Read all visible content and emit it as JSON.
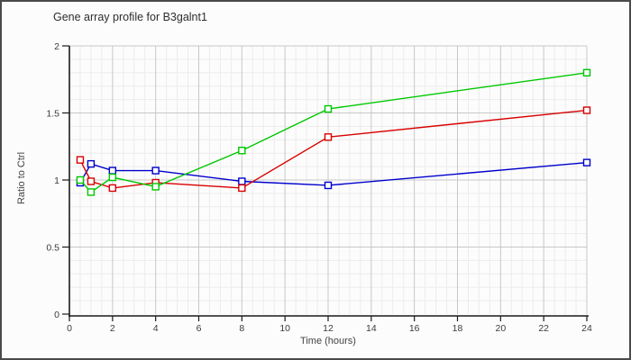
{
  "window": {
    "background": "#fcfcfc",
    "border_color": "#4a4a4a"
  },
  "chart_data": {
    "type": "line",
    "title": "Gene array profile for B3galnt1",
    "xlabel": "Time (hours)",
    "ylabel": "Ratio to Ctrl",
    "x": [
      0.5,
      1,
      2,
      4,
      8,
      12,
      24
    ],
    "series": [
      {
        "name": "blue",
        "color": "#0000cd",
        "values": [
          0.98,
          1.12,
          1.07,
          1.07,
          0.99,
          0.96,
          1.13
        ]
      },
      {
        "name": "red",
        "color": "#d80000",
        "values": [
          1.15,
          0.99,
          0.94,
          0.98,
          0.94,
          1.32,
          1.52
        ]
      },
      {
        "name": "green",
        "color": "#00c800",
        "values": [
          1.0,
          0.91,
          1.02,
          0.95,
          1.22,
          1.53,
          1.8
        ]
      }
    ],
    "xlim": [
      0,
      24
    ],
    "ylim": [
      0,
      2
    ],
    "x_ticks": [
      0,
      2,
      4,
      6,
      8,
      10,
      12,
      14,
      16,
      18,
      20,
      22,
      24
    ],
    "y_ticks": [
      0,
      0.5,
      1,
      1.5,
      2
    ],
    "y_tick_labels": [
      "0",
      "0.5",
      "1",
      "1.5",
      "2"
    ],
    "grid": {
      "minor_x_step": 0.5,
      "minor_y_step": 0.1,
      "major_color": "#c8c8c8",
      "minor_color": "#ececec"
    },
    "axis_color": "#1a1a1a",
    "marker": "open-square",
    "legend": "none"
  }
}
